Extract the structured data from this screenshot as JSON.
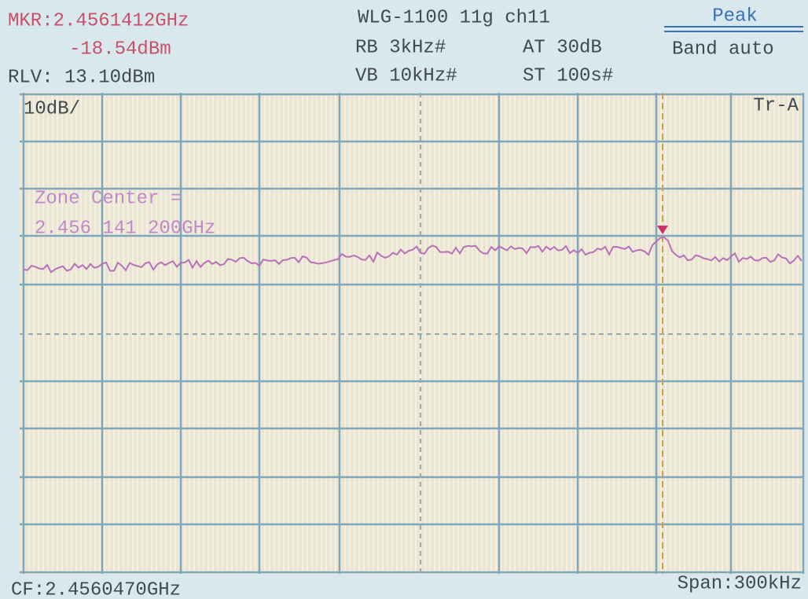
{
  "header": {
    "marker_freq": "MKR:2.4561412GHz",
    "marker_level": "-18.54dBm",
    "ref_level": "RLV: 13.10dBm",
    "title": "WLG-1100 11g ch11",
    "rbw": "RB 3kHz#",
    "attenuation": "AT 30dB",
    "vbw": "VB 10kHz#",
    "sweep_time": "ST 100s#",
    "detector": "Peak",
    "band": "Band auto"
  },
  "screen": {
    "scale": "10dB/",
    "trace": "Tr-A",
    "zone_label": "Zone Center =",
    "zone_value": "2.456 141 200GHz"
  },
  "footer": {
    "center_freq": "CF:2.4560470GHz",
    "span": "Span:300kHz"
  }
}
